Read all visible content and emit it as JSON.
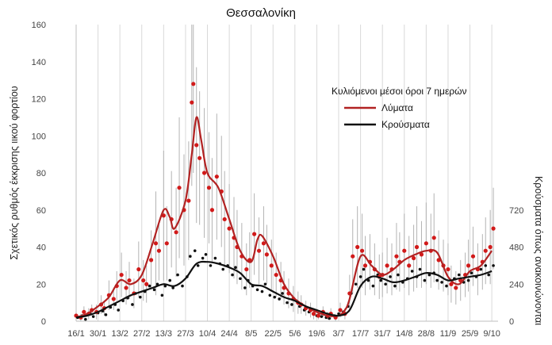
{
  "chart_data": {
    "type": "line",
    "title": "Θεσσαλονίκη",
    "ylabel": "Σχετικός ρυθμός έκκρισης ιικού φορτίου",
    "y2label": "Κρούσματα όπως ανακοινώνονται",
    "legend": {
      "title": "Κυλιόμενοι μέσοι όροι 7 ημερών",
      "position": "top-right",
      "entries": [
        {
          "label": "Λύματα",
          "color": "#b22222"
        },
        {
          "label": "Κρούσματα",
          "color": "#111111"
        }
      ]
    },
    "ylim": [
      0,
      160
    ],
    "yticks": [
      0,
      20,
      40,
      60,
      80,
      100,
      120,
      140,
      160
    ],
    "y2lim": [
      0,
      1920
    ],
    "y2ticks": [
      0,
      240,
      480,
      720
    ],
    "xlim": [
      0,
      270
    ],
    "xticks": [
      {
        "x": 0,
        "label": "16/1"
      },
      {
        "x": 14,
        "label": "30/1"
      },
      {
        "x": 28,
        "label": "13/2"
      },
      {
        "x": 42,
        "label": "27/2"
      },
      {
        "x": 56,
        "label": "13/3"
      },
      {
        "x": 70,
        "label": "27/3"
      },
      {
        "x": 84,
        "label": "10/4"
      },
      {
        "x": 98,
        "label": "24/4"
      },
      {
        "x": 112,
        "label": "8/5"
      },
      {
        "x": 126,
        "label": "22/5"
      },
      {
        "x": 140,
        "label": "5/6"
      },
      {
        "x": 154,
        "label": "19/6"
      },
      {
        "x": 168,
        "label": "3/7"
      },
      {
        "x": 182,
        "label": "17/7"
      },
      {
        "x": 196,
        "label": "31/7"
      },
      {
        "x": 210,
        "label": "14/8"
      },
      {
        "x": 224,
        "label": "28/8"
      },
      {
        "x": 238,
        "label": "11/9"
      },
      {
        "x": 252,
        "label": "25/9"
      },
      {
        "x": 266,
        "label": "9/10"
      }
    ],
    "grid": {
      "vertical": true,
      "horizontal": false
    },
    "series": [
      {
        "name": "Λύματα",
        "kind": "moving-average-line",
        "color": "#b22222",
        "x": [
          0,
          7,
          14,
          21,
          28,
          35,
          42,
          49,
          56,
          60,
          63,
          70,
          74,
          77,
          80,
          84,
          91,
          98,
          105,
          112,
          116,
          119,
          126,
          133,
          140,
          147,
          154,
          161,
          168,
          172,
          175,
          182,
          189,
          196,
          203,
          210,
          217,
          224,
          231,
          238,
          245,
          252,
          259,
          266
        ],
        "values": [
          2,
          4,
          8,
          13,
          22,
          20,
          25,
          42,
          60,
          56,
          50,
          65,
          90,
          110,
          98,
          80,
          72,
          55,
          38,
          32,
          44,
          46,
          35,
          20,
          12,
          8,
          5,
          3,
          3,
          6,
          12,
          35,
          30,
          25,
          28,
          33,
          36,
          38,
          37,
          24,
          20,
          27,
          30,
          38
        ]
      },
      {
        "name": "Κρούσματα",
        "kind": "moving-average-line",
        "color": "#111111",
        "axis": "right",
        "x": [
          0,
          7,
          14,
          21,
          28,
          35,
          42,
          49,
          56,
          63,
          70,
          77,
          84,
          91,
          98,
          105,
          112,
          119,
          126,
          133,
          140,
          147,
          154,
          161,
          168,
          175,
          182,
          189,
          196,
          203,
          210,
          217,
          224,
          231,
          238,
          245,
          252,
          259,
          266
        ],
        "values": [
          24,
          36,
          60,
          96,
          132,
          168,
          192,
          216,
          240,
          228,
          276,
          372,
          384,
          372,
          348,
          312,
          240,
          228,
          192,
          156,
          132,
          96,
          72,
          48,
          36,
          72,
          228,
          288,
          276,
          252,
          264,
          288,
          312,
          300,
          264,
          276,
          288,
          300,
          324
        ]
      },
      {
        "name": "Λύματα (ημερήσιες τιμές)",
        "kind": "daily-points-with-error-bars",
        "color": "#d11a1a",
        "x": [
          0,
          3,
          5,
          8,
          10,
          13,
          16,
          18,
          21,
          24,
          26,
          29,
          32,
          34,
          37,
          40,
          43,
          45,
          48,
          51,
          53,
          56,
          58,
          61,
          64,
          66,
          69,
          72,
          74,
          75,
          77,
          79,
          82,
          85,
          87,
          90,
          93,
          95,
          98,
          101,
          103,
          106,
          109,
          111,
          114,
          117,
          120,
          122,
          125,
          128,
          131,
          133,
          136,
          139,
          142,
          144,
          147,
          150,
          152,
          155,
          158,
          161,
          163,
          166,
          169,
          172,
          175,
          177,
          180,
          183,
          185,
          188,
          191,
          194,
          196,
          199,
          202,
          205,
          207,
          210,
          213,
          216,
          218,
          221,
          224,
          227,
          229,
          232,
          235,
          238,
          240,
          243,
          246,
          249,
          251,
          254,
          257,
          260,
          262,
          265,
          267
        ],
        "values": [
          3,
          2,
          5,
          4,
          6,
          5,
          9,
          7,
          14,
          12,
          19,
          25,
          18,
          22,
          15,
          28,
          22,
          20,
          33,
          42,
          38,
          57,
          42,
          55,
          48,
          72,
          60,
          65,
          118,
          128,
          95,
          88,
          80,
          72,
          60,
          78,
          70,
          55,
          50,
          45,
          40,
          35,
          28,
          33,
          47,
          38,
          42,
          36,
          30,
          25,
          22,
          18,
          15,
          12,
          10,
          9,
          7,
          6,
          4,
          3,
          5,
          3,
          4,
          2,
          6,
          4,
          15,
          35,
          40,
          38,
          30,
          32,
          28,
          24,
          25,
          30,
          28,
          35,
          32,
          38,
          30,
          34,
          40,
          36,
          42,
          38,
          45,
          33,
          30,
          28,
          20,
          18,
          22,
          25,
          30,
          35,
          28,
          32,
          38,
          40,
          50
        ],
        "errors": [
          2,
          2,
          3,
          3,
          3,
          4,
          5,
          4,
          8,
          6,
          8,
          12,
          9,
          10,
          8,
          15,
          11,
          10,
          16,
          28,
          16,
          35,
          20,
          26,
          24,
          38,
          30,
          32,
          45,
          48,
          42,
          36,
          35,
          30,
          28,
          34,
          30,
          26,
          24,
          22,
          20,
          18,
          14,
          15,
          22,
          18,
          20,
          16,
          14,
          12,
          10,
          9,
          8,
          7,
          6,
          5,
          4,
          4,
          3,
          2,
          3,
          2,
          3,
          2,
          4,
          3,
          10,
          20,
          22,
          20,
          16,
          15,
          14,
          12,
          12,
          15,
          14,
          18,
          16,
          20,
          16,
          18,
          22,
          18,
          22,
          20,
          24,
          16,
          14,
          14,
          10,
          9,
          11,
          12,
          14,
          16,
          14,
          15,
          18,
          20,
          22
        ]
      },
      {
        "name": "Κρούσματα (ημερήσιες τιμές)",
        "kind": "daily-points",
        "color": "#111111",
        "axis": "right",
        "x": [
          1,
          4,
          6,
          9,
          11,
          14,
          17,
          19,
          22,
          25,
          27,
          30,
          33,
          36,
          38,
          41,
          44,
          47,
          50,
          52,
          55,
          57,
          60,
          62,
          65,
          68,
          71,
          73,
          76,
          78,
          81,
          83,
          86,
          89,
          92,
          94,
          97,
          100,
          102,
          105,
          108,
          110,
          113,
          116,
          119,
          121,
          124,
          127,
          130,
          132,
          135,
          138,
          141,
          143,
          146,
          149,
          152,
          154,
          157,
          160,
          162,
          165,
          168,
          171,
          174,
          176,
          179,
          182,
          184,
          187,
          190,
          193,
          195,
          198,
          201,
          204,
          206,
          209,
          212,
          215,
          218,
          220,
          223,
          226,
          229,
          231,
          234,
          237,
          240,
          242,
          245,
          248,
          251,
          253,
          256,
          259,
          262,
          264,
          267
        ],
        "values": [
          24,
          36,
          12,
          48,
          30,
          54,
          66,
          42,
          90,
          108,
          72,
          132,
          150,
          108,
          180,
          156,
          192,
          228,
          204,
          240,
          168,
          228,
          264,
          216,
          300,
          228,
          288,
          420,
          456,
          360,
          408,
          432,
          360,
          408,
          372,
          336,
          360,
          300,
          348,
          276,
          216,
          264,
          228,
          204,
          192,
          240,
          168,
          156,
          144,
          180,
          120,
          108,
          132,
          96,
          72,
          60,
          48,
          36,
          30,
          24,
          18,
          36,
          48,
          60,
          96,
          180,
          240,
          288,
          336,
          264,
          228,
          300,
          264,
          240,
          288,
          228,
          300,
          252,
          276,
          324,
          288,
          336,
          264,
          300,
          312,
          264,
          252,
          228,
          240,
          276,
          300,
          252,
          264,
          312,
          288,
          336,
          360,
          300,
          360
        ]
      }
    ]
  }
}
